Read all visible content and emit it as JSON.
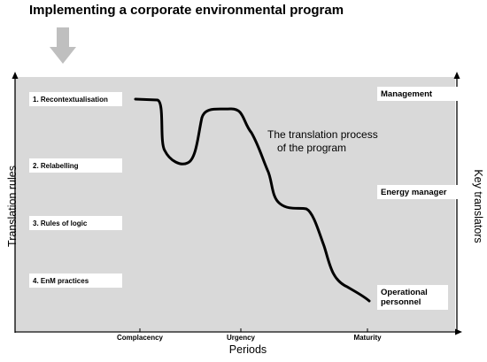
{
  "header": {
    "title": "Implementing a corporate environmental program"
  },
  "icons": {
    "down_arrow": "down-arrow-icon"
  },
  "colors": {
    "panel": "#d9d9d9",
    "arrow": "#bfbfbf",
    "curve": "#000000",
    "box": "#ffffff"
  },
  "axes": {
    "y_left_label": "Translation rules",
    "y_right_label": "Key translators",
    "x_label": "Periods"
  },
  "translation_rules": [
    {
      "label": "1. Recontextualisation"
    },
    {
      "label": "2. Relabelling"
    },
    {
      "label": "3. Rules of logic"
    },
    {
      "label": "4. EnM practices"
    }
  ],
  "key_translators": [
    {
      "label": "Management"
    },
    {
      "label": "Energy manager"
    },
    {
      "label": "Operational personnel"
    }
  ],
  "periods": [
    {
      "label": "Complacency"
    },
    {
      "label": "Urgency"
    },
    {
      "label": "Maturity"
    }
  ],
  "annotation": {
    "line1": "The translation process",
    "line2": "of the program"
  }
}
